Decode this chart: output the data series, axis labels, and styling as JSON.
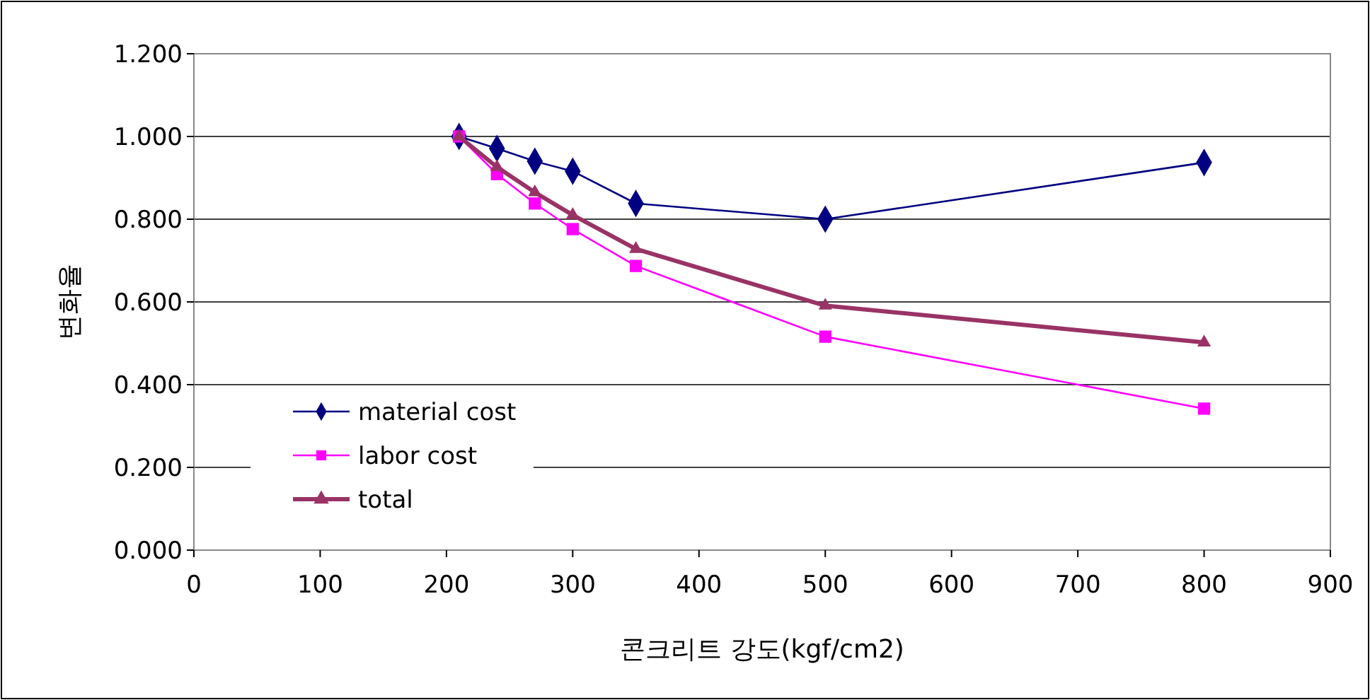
{
  "chart_data": {
    "type": "line",
    "xlabel": "콘크리트 강도(kgf/cm2)",
    "ylabel": "변화율",
    "x": [
      210,
      240,
      270,
      300,
      350,
      500,
      800
    ],
    "series": [
      {
        "name": "material cost",
        "color": "#000080",
        "marker": "diamond",
        "values": [
          1.0,
          0.971,
          0.94,
          0.916,
          0.838,
          0.8,
          0.937
        ]
      },
      {
        "name": "labor cost",
        "color": "#ff00ff",
        "marker": "square",
        "values": [
          1.0,
          0.909,
          0.838,
          0.776,
          0.687,
          0.516,
          0.342
        ]
      },
      {
        "name": "total",
        "color": "#993366",
        "marker": "triangle",
        "values": [
          1.0,
          0.926,
          0.865,
          0.81,
          0.728,
          0.591,
          0.502
        ]
      }
    ],
    "xlim": [
      0,
      900
    ],
    "xticks": [
      0,
      100,
      200,
      300,
      400,
      500,
      600,
      700,
      800,
      900
    ],
    "ylim": [
      0,
      1.2
    ],
    "yticks": [
      {
        "value": 0,
        "label": "0.000"
      },
      {
        "value": 0.2,
        "label": "0.200"
      },
      {
        "value": 0.4,
        "label": "0.400"
      },
      {
        "value": 0.6,
        "label": "0.600"
      },
      {
        "value": 0.8,
        "label": "0.800"
      },
      {
        "value": 1.0,
        "label": "1.000"
      },
      {
        "value": 1.2,
        "label": "1.200"
      }
    ],
    "grid": "y",
    "legend": "bottom left"
  }
}
